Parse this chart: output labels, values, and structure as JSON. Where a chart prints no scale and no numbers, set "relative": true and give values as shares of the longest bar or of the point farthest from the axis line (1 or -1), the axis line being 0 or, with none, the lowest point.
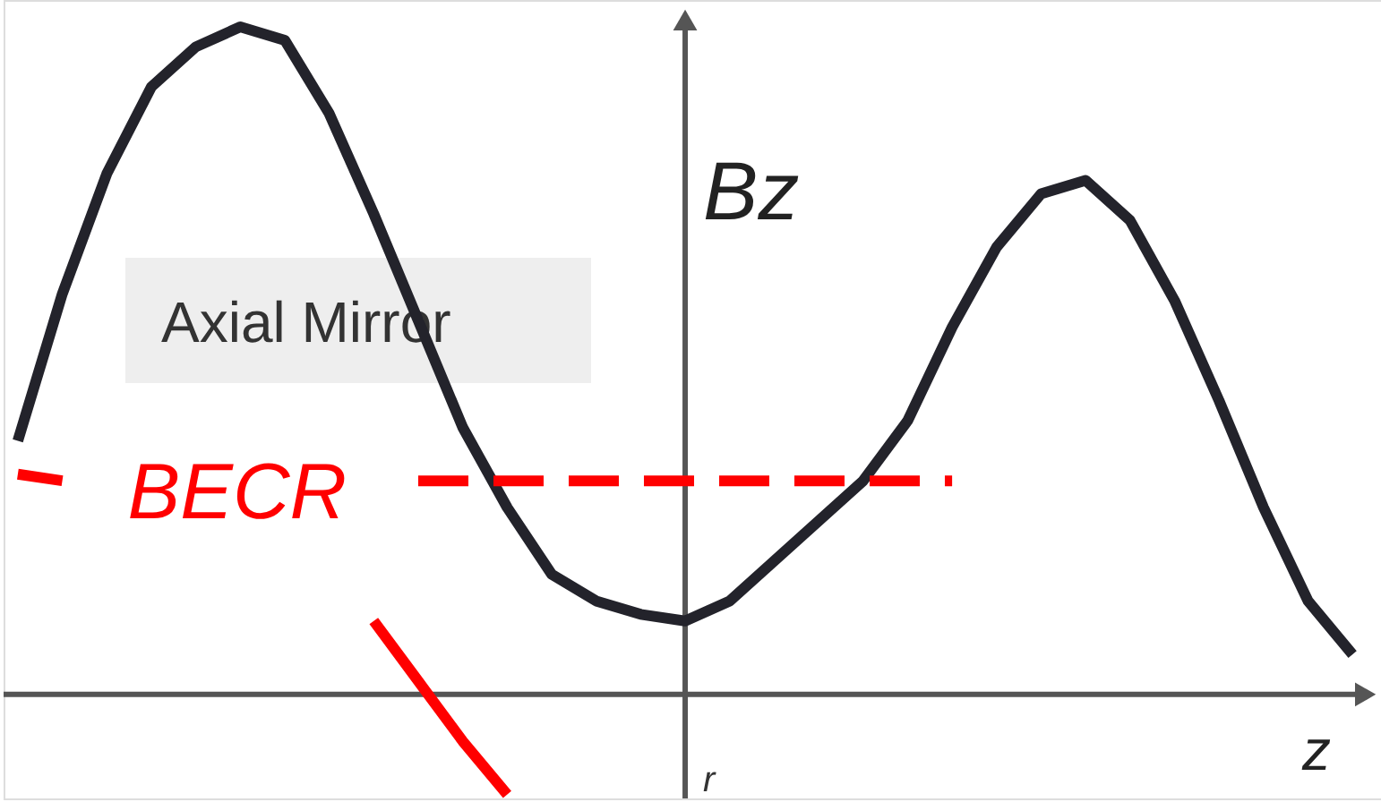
{
  "chart_data": {
    "type": "line",
    "relative": true,
    "xlabel": "z",
    "ylabel": "Bz",
    "grid": false,
    "categories": [
      null,
      null,
      null,
      null,
      null,
      null,
      null,
      null,
      null,
      null,
      null,
      null,
      null,
      null,
      null,
      null,
      null,
      null,
      null,
      null,
      null,
      null,
      null,
      null,
      null,
      null,
      null,
      null,
      null,
      null,
      null
    ],
    "series": [
      {
        "color": "#23232b",
        "values": [
          0.38,
          0.6,
          0.78,
          0.91,
          0.97,
          1.0,
          0.98,
          0.87,
          0.72,
          0.56,
          0.4,
          0.28,
          0.18,
          0.14,
          0.12,
          0.11,
          0.14,
          0.2,
          0.26,
          0.32,
          0.41,
          0.55,
          0.67,
          0.75,
          0.77,
          0.71,
          0.59,
          0.44,
          0.28,
          0.14,
          0.06
        ]
      },
      {
        "name": "BECR",
        "color": "#ff0000",
        "line_style": "dashed",
        "values": [
          null,
          null,
          null,
          null,
          null,
          null,
          null,
          null,
          null,
          0.32,
          0.32,
          0.32,
          0.32,
          0.32,
          0.32,
          0.32,
          0.32,
          0.32,
          0.32,
          0.32,
          0.32,
          0.32,
          null,
          null,
          null,
          null,
          null,
          null,
          null,
          null,
          null
        ]
      },
      {
        "color": "#ff0000",
        "values": [
          0.33,
          0.32,
          null,
          null,
          null,
          null,
          null,
          null,
          0.11,
          0.02,
          -0.07,
          -0.15,
          null,
          null,
          null,
          null,
          null,
          null,
          null,
          null,
          null,
          null,
          null,
          null,
          null,
          null,
          null,
          null,
          null,
          null,
          null
        ]
      }
    ],
    "annotations": [
      "Axial Mirror",
      "r"
    ]
  }
}
